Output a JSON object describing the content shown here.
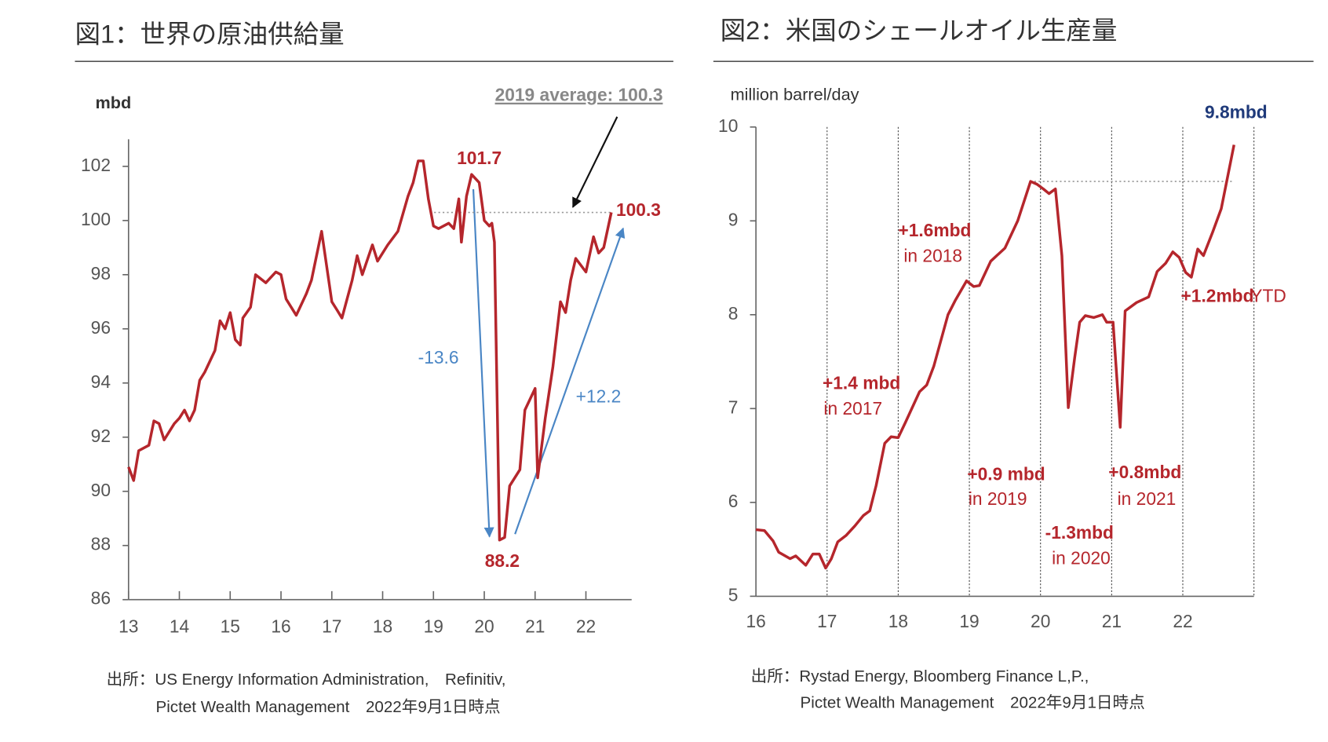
{
  "chart_data": [
    {
      "type": "line",
      "title": "図1：世界の原油供給量",
      "ylabel": "mbd",
      "color": "#b5262c",
      "xlim": [
        13,
        22.9
      ],
      "ylim": [
        86,
        103
      ],
      "xticks": [
        13,
        14,
        15,
        16,
        17,
        18,
        19,
        20,
        21,
        22
      ],
      "yticks": [
        86,
        88,
        90,
        92,
        94,
        96,
        98,
        100,
        102
      ],
      "x": [
        13.0,
        13.1,
        13.2,
        13.4,
        13.5,
        13.6,
        13.7,
        13.9,
        14.0,
        14.1,
        14.2,
        14.3,
        14.4,
        14.5,
        14.7,
        14.8,
        14.9,
        15.0,
        15.1,
        15.2,
        15.25,
        15.4,
        15.5,
        15.7,
        15.9,
        16.0,
        16.1,
        16.3,
        16.5,
        16.6,
        16.8,
        17.0,
        17.1,
        17.2,
        17.4,
        17.5,
        17.6,
        17.8,
        17.9,
        18.1,
        18.3,
        18.5,
        18.6,
        18.7,
        18.8,
        18.9,
        19.0,
        19.1,
        19.3,
        19.4,
        19.5,
        19.55,
        19.65,
        19.75,
        19.9,
        20.0,
        20.1,
        20.15,
        20.2,
        20.3,
        20.4,
        20.5,
        20.7,
        20.8,
        20.9,
        21.0,
        21.05,
        21.2,
        21.35,
        21.5,
        21.6,
        21.7,
        21.8,
        22.0,
        22.15,
        22.25,
        22.35,
        22.5
      ],
      "values": [
        90.9,
        90.4,
        91.5,
        91.7,
        92.6,
        92.5,
        91.9,
        92.5,
        92.7,
        93.0,
        92.6,
        93.0,
        94.1,
        94.4,
        95.2,
        96.3,
        96.0,
        96.6,
        95.6,
        95.4,
        96.4,
        96.8,
        98.0,
        97.7,
        98.1,
        98.0,
        97.1,
        96.5,
        97.3,
        97.8,
        99.6,
        97.0,
        96.7,
        96.4,
        97.8,
        98.7,
        98.0,
        99.1,
        98.5,
        99.1,
        99.6,
        100.9,
        101.4,
        102.2,
        102.2,
        100.8,
        99.8,
        99.7,
        99.9,
        99.7,
        100.8,
        99.2,
        100.9,
        101.7,
        101.4,
        100.0,
        99.8,
        99.9,
        99.2,
        88.2,
        88.3,
        90.2,
        90.8,
        93.0,
        93.4,
        93.8,
        90.5,
        92.7,
        94.6,
        97.0,
        96.6,
        97.8,
        98.6,
        98.1,
        99.4,
        98.8,
        99.0,
        100.3
      ],
      "average_line": 100.3,
      "annotations": [
        "101.7",
        "88.2",
        "100.3",
        "-13.6",
        "+12.2",
        "2019 average: 100.3"
      ],
      "source": [
        "出所：US Energy Information Administration,　Refinitiv,",
        "Pictet Wealth Management　2022年9月1日時点"
      ]
    },
    {
      "type": "line",
      "title": "図2：米国のシェールオイル生産量",
      "ylabel": "million barrel/day",
      "color": "#b5262c",
      "grid": "x",
      "xlim": [
        16,
        23
      ],
      "ylim": [
        5,
        10
      ],
      "xticks": [
        16,
        17,
        18,
        19,
        20,
        21,
        22
      ],
      "yticks": [
        5,
        6,
        7,
        8,
        9,
        10
      ],
      "x": [
        16.0,
        16.12,
        16.24,
        16.32,
        16.48,
        16.56,
        16.7,
        16.8,
        16.89,
        16.98,
        17.06,
        17.15,
        17.27,
        17.39,
        17.51,
        17.6,
        17.69,
        17.81,
        17.9,
        18.0,
        18.1,
        18.3,
        18.4,
        18.5,
        18.7,
        18.8,
        18.96,
        19.06,
        19.14,
        19.3,
        19.5,
        19.68,
        19.86,
        19.95,
        20.04,
        20.12,
        20.21,
        20.3,
        20.39,
        20.48,
        20.55,
        20.63,
        20.75,
        20.87,
        20.93,
        21.02,
        21.12,
        21.19,
        21.35,
        21.52,
        21.64,
        21.76,
        21.86,
        21.95,
        22.04,
        22.12,
        22.21,
        22.29,
        22.42,
        22.54,
        22.72
      ],
      "values": [
        5.71,
        5.7,
        5.59,
        5.47,
        5.4,
        5.43,
        5.33,
        5.45,
        5.45,
        5.3,
        5.4,
        5.58,
        5.65,
        5.75,
        5.86,
        5.91,
        6.18,
        6.63,
        6.7,
        6.69,
        6.85,
        7.18,
        7.25,
        7.45,
        8.0,
        8.15,
        8.36,
        8.3,
        8.31,
        8.57,
        8.71,
        9.0,
        9.42,
        9.39,
        9.34,
        9.29,
        9.34,
        8.63,
        7.01,
        7.54,
        7.92,
        7.99,
        7.97,
        8.0,
        7.92,
        7.92,
        6.8,
        8.04,
        8.13,
        8.19,
        8.46,
        8.55,
        8.67,
        8.61,
        8.45,
        8.4,
        8.7,
        8.63,
        8.88,
        9.13,
        9.81
      ],
      "average_line": 9.42,
      "annotations": [
        "+1.6mbd",
        "in 2018",
        "+1.4 mbd",
        "in 2017",
        "+0.9 mbd",
        "in 2019",
        "-1.3mbd",
        "in 2020",
        "+0.8mbd",
        "in 2021",
        "+1.2mbd",
        "YTD",
        "9.8mbd"
      ],
      "source": [
        "出所：Rystad Energy, Bloomberg Finance L,P.,",
        "Pictet Wealth Management　2022年9月1日時点"
      ]
    }
  ]
}
